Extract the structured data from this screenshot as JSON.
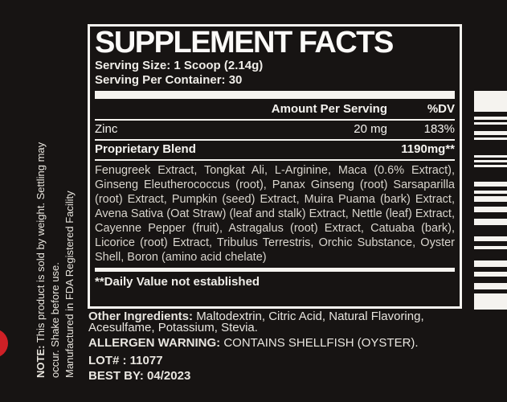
{
  "label": {
    "title": "SUPPLEMENT FACTS",
    "serving_size": "Serving Size: 1 Scoop (2.14g)",
    "servings_per_container": "Serving Per Container: 30",
    "table": {
      "amount_header": "Amount Per Serving",
      "dv_header": "%DV",
      "zinc_row": {
        "name": "Zinc",
        "amount": "20 mg",
        "dv": "183%"
      },
      "blend_row": {
        "name": "Proprietary Blend",
        "amount": "1190mg**"
      },
      "blend_ingredients": "Fenugreek Extract, Tongkat Ali, L-Arginine, Maca (0.6% Extract), Ginseng Eleutherococcus (root), Panax Ginseng (root) Sarsaparilla (root) Extract, Pumpkin (seed) Extract, Muira Puama (bark) Extract, Avena Sativa (Oat Straw) (leaf and stalk) Extract, Nettle (leaf) Extract, Cayenne Pepper (fruit), Astragalus (root) Extract, Catuaba (bark), Licorice (root) Extract, Tribulus Terrestris, Orchic Substance, Oyster Shell, Boron (amino acid chelate)",
      "footnote": "**Daily Value not established"
    },
    "other_ingredients_label": "Other Ingredients:",
    "other_ingredients": "Maltodextrin, Citric Acid, Natural Flavoring, Acesulfame, Potassium, Stevia.",
    "allergen_label": "ALLERGEN WARNING:",
    "allergen": "CONTAINS SHELLFISH (OYSTER).",
    "lot": "LOT# : 11077",
    "best_by": "BEST BY: 04/2023"
  },
  "side_notes": {
    "note_label": "NOTE:",
    "note_text": "This product is sold by weight. Settling may",
    "line2": "occur. Shake before use.",
    "line3": "Manufactured in FDA Registered Facility"
  },
  "decorations": {
    "barcode": "barcode",
    "red_dot": "red-dot"
  },
  "colors": {
    "background": "#171413",
    "text": "#f5f3ef",
    "blend_text": "#d9d5cd",
    "accent_red": "#cf2026"
  }
}
